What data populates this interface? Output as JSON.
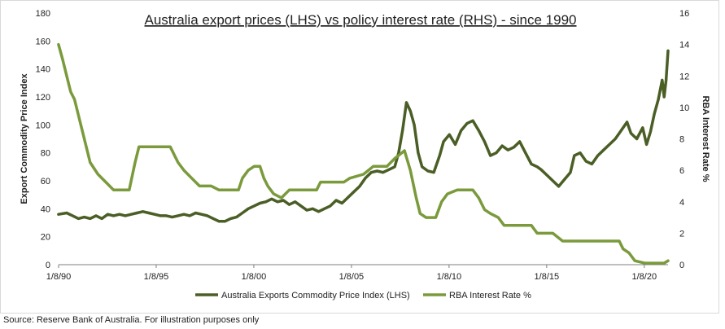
{
  "chart_data": {
    "type": "line",
    "title": "Australia export prices (LHS) vs policy interest rate (RHS) - since 1990",
    "ylabel_left": "Export Commodity Price Index",
    "ylabel_right": "RBA Interest Rate %",
    "y_left": {
      "min": 0,
      "max": 180,
      "ticks": [
        "0",
        "20",
        "40",
        "60",
        "80",
        "100",
        "120",
        "140",
        "160",
        "180"
      ]
    },
    "y_right": {
      "min": 0,
      "max": 16,
      "ticks": [
        "0",
        "2",
        "4",
        "6",
        "8",
        "10",
        "12",
        "14",
        "16"
      ]
    },
    "x_range": [
      1990.583,
      2021.8
    ],
    "x_ticks": [
      {
        "x": 1990.583,
        "label": "1/8/90"
      },
      {
        "x": 1995.583,
        "label": "1/8/95"
      },
      {
        "x": 2000.583,
        "label": "1/8/00"
      },
      {
        "x": 2005.583,
        "label": "1/8/05"
      },
      {
        "x": 2010.583,
        "label": "1/8/10"
      },
      {
        "x": 2015.583,
        "label": "1/8/15"
      },
      {
        "x": 2020.583,
        "label": "1/8/20"
      }
    ],
    "grid": false,
    "legend_position": "bottom",
    "series": [
      {
        "name": "Australia Exports Commodity Price Index (LHS)",
        "axis": "left",
        "color": "#4a5e25",
        "points": [
          [
            1990.58,
            36
          ],
          [
            1991.0,
            37
          ],
          [
            1991.3,
            35
          ],
          [
            1991.6,
            33
          ],
          [
            1991.9,
            34
          ],
          [
            1992.2,
            33
          ],
          [
            1992.5,
            35
          ],
          [
            1992.8,
            33
          ],
          [
            1993.1,
            36
          ],
          [
            1993.4,
            35
          ],
          [
            1993.7,
            36
          ],
          [
            1994.0,
            35
          ],
          [
            1994.3,
            36
          ],
          [
            1994.6,
            37
          ],
          [
            1994.9,
            38
          ],
          [
            1995.2,
            37
          ],
          [
            1995.5,
            36
          ],
          [
            1995.8,
            35
          ],
          [
            1996.1,
            35
          ],
          [
            1996.4,
            34
          ],
          [
            1996.7,
            35
          ],
          [
            1997.0,
            36
          ],
          [
            1997.3,
            35
          ],
          [
            1997.6,
            37
          ],
          [
            1997.9,
            36
          ],
          [
            1998.2,
            35
          ],
          [
            1998.5,
            33
          ],
          [
            1998.8,
            31
          ],
          [
            1999.1,
            31
          ],
          [
            1999.4,
            33
          ],
          [
            1999.7,
            34
          ],
          [
            2000.0,
            37
          ],
          [
            2000.3,
            40
          ],
          [
            2000.6,
            42
          ],
          [
            2000.9,
            44
          ],
          [
            2001.2,
            45
          ],
          [
            2001.5,
            47
          ],
          [
            2001.8,
            45
          ],
          [
            2002.1,
            46
          ],
          [
            2002.4,
            43
          ],
          [
            2002.7,
            45
          ],
          [
            2003.0,
            42
          ],
          [
            2003.3,
            39
          ],
          [
            2003.6,
            40
          ],
          [
            2003.9,
            38
          ],
          [
            2004.2,
            40
          ],
          [
            2004.5,
            42
          ],
          [
            2004.8,
            46
          ],
          [
            2005.1,
            44
          ],
          [
            2005.4,
            48
          ],
          [
            2005.7,
            52
          ],
          [
            2006.0,
            56
          ],
          [
            2006.3,
            62
          ],
          [
            2006.6,
            66
          ],
          [
            2006.9,
            67
          ],
          [
            2007.2,
            66
          ],
          [
            2007.5,
            68
          ],
          [
            2007.8,
            70
          ],
          [
            2008.0,
            80
          ],
          [
            2008.2,
            96
          ],
          [
            2008.4,
            116
          ],
          [
            2008.6,
            110
          ],
          [
            2008.8,
            100
          ],
          [
            2009.0,
            80
          ],
          [
            2009.2,
            70
          ],
          [
            2009.5,
            67
          ],
          [
            2009.8,
            66
          ],
          [
            2010.1,
            78
          ],
          [
            2010.3,
            88
          ],
          [
            2010.6,
            93
          ],
          [
            2010.9,
            86
          ],
          [
            2011.2,
            96
          ],
          [
            2011.5,
            101
          ],
          [
            2011.8,
            103
          ],
          [
            2012.1,
            96
          ],
          [
            2012.4,
            88
          ],
          [
            2012.7,
            78
          ],
          [
            2013.0,
            80
          ],
          [
            2013.3,
            85
          ],
          [
            2013.6,
            82
          ],
          [
            2013.9,
            84
          ],
          [
            2014.2,
            88
          ],
          [
            2014.5,
            80
          ],
          [
            2014.8,
            72
          ],
          [
            2015.1,
            70
          ],
          [
            2015.3,
            68
          ],
          [
            2015.6,
            64
          ],
          [
            2015.9,
            60
          ],
          [
            2016.2,
            56
          ],
          [
            2016.5,
            61
          ],
          [
            2016.8,
            66
          ],
          [
            2017.0,
            78
          ],
          [
            2017.3,
            80
          ],
          [
            2017.6,
            74
          ],
          [
            2017.9,
            72
          ],
          [
            2018.2,
            78
          ],
          [
            2018.5,
            82
          ],
          [
            2018.8,
            86
          ],
          [
            2019.1,
            90
          ],
          [
            2019.4,
            96
          ],
          [
            2019.7,
            102
          ],
          [
            2019.9,
            94
          ],
          [
            2020.2,
            90
          ],
          [
            2020.5,
            98
          ],
          [
            2020.7,
            86
          ],
          [
            2020.9,
            95
          ],
          [
            2021.1,
            108
          ],
          [
            2021.3,
            118
          ],
          [
            2021.5,
            132
          ],
          [
            2021.6,
            120
          ],
          [
            2021.7,
            132
          ],
          [
            2021.8,
            153
          ]
        ]
      },
      {
        "name": "RBA Interest Rate %",
        "axis": "right",
        "color": "#7a9a3c",
        "points": [
          [
            1990.58,
            14
          ],
          [
            1990.8,
            13
          ],
          [
            1991.0,
            12
          ],
          [
            1991.2,
            11
          ],
          [
            1991.4,
            10.5
          ],
          [
            1991.6,
            9.5
          ],
          [
            1991.8,
            8.5
          ],
          [
            1992.0,
            7.5
          ],
          [
            1992.2,
            6.5
          ],
          [
            1992.6,
            5.75
          ],
          [
            1993.0,
            5.25
          ],
          [
            1993.4,
            4.75
          ],
          [
            1994.2,
            4.75
          ],
          [
            1994.5,
            6.5
          ],
          [
            1994.7,
            7.5
          ],
          [
            1995.0,
            7.5
          ],
          [
            1996.3,
            7.5
          ],
          [
            1996.7,
            6.5
          ],
          [
            1997.0,
            6.0
          ],
          [
            1997.4,
            5.5
          ],
          [
            1997.8,
            5.0
          ],
          [
            1998.4,
            5.0
          ],
          [
            1998.8,
            4.75
          ],
          [
            1999.8,
            4.75
          ],
          [
            2000.0,
            5.5
          ],
          [
            2000.3,
            6.0
          ],
          [
            2000.6,
            6.25
          ],
          [
            2000.9,
            6.25
          ],
          [
            2001.1,
            5.5
          ],
          [
            2001.3,
            5.0
          ],
          [
            2001.6,
            4.5
          ],
          [
            2002.0,
            4.25
          ],
          [
            2002.4,
            4.75
          ],
          [
            2003.8,
            4.75
          ],
          [
            2004.0,
            5.25
          ],
          [
            2005.2,
            5.25
          ],
          [
            2005.5,
            5.5
          ],
          [
            2006.2,
            5.75
          ],
          [
            2006.7,
            6.25
          ],
          [
            2007.4,
            6.25
          ],
          [
            2007.8,
            6.75
          ],
          [
            2008.3,
            7.25
          ],
          [
            2008.6,
            6.0
          ],
          [
            2008.9,
            4.25
          ],
          [
            2009.1,
            3.25
          ],
          [
            2009.4,
            3.0
          ],
          [
            2009.9,
            3.0
          ],
          [
            2010.2,
            4.0
          ],
          [
            2010.5,
            4.5
          ],
          [
            2011.0,
            4.75
          ],
          [
            2011.8,
            4.75
          ],
          [
            2012.1,
            4.25
          ],
          [
            2012.4,
            3.5
          ],
          [
            2012.7,
            3.25
          ],
          [
            2013.1,
            3.0
          ],
          [
            2013.4,
            2.5
          ],
          [
            2014.8,
            2.5
          ],
          [
            2015.1,
            2.0
          ],
          [
            2015.9,
            2.0
          ],
          [
            2016.4,
            1.5
          ],
          [
            2019.3,
            1.5
          ],
          [
            2019.5,
            1.0
          ],
          [
            2019.8,
            0.75
          ],
          [
            2020.1,
            0.25
          ],
          [
            2020.6,
            0.1
          ],
          [
            2021.6,
            0.1
          ],
          [
            2021.8,
            0.25
          ]
        ]
      }
    ]
  },
  "source_text": "Source: Reserve Bank of Australia. For illustration purposes only"
}
